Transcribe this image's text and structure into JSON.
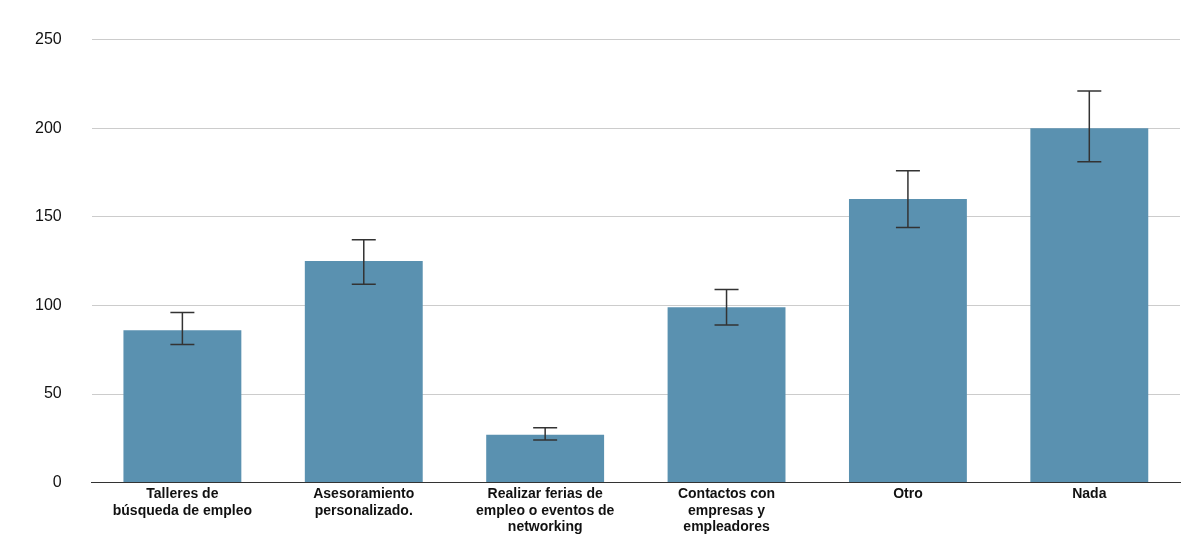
{
  "chart_data": {
    "type": "bar",
    "categories": [
      "Talleres de búsqueda de empleo",
      "Asesoramiento personalizado.",
      "Realizar ferias de empleo o eventos de networking",
      "Contactos con empresas y empleadores",
      "Otro",
      "Nada"
    ],
    "values": [
      86,
      125,
      27,
      99,
      160,
      200
    ],
    "errors": [
      [
        78,
        96
      ],
      [
        112,
        137
      ],
      [
        24,
        31
      ],
      [
        89,
        109
      ],
      [
        144,
        176
      ],
      [
        181,
        221
      ]
    ],
    "color": "#5a91b0",
    "ylim": [
      0,
      250
    ],
    "yticks": [
      0,
      50,
      100,
      150,
      200,
      250
    ],
    "grid": "y",
    "legend": false
  }
}
